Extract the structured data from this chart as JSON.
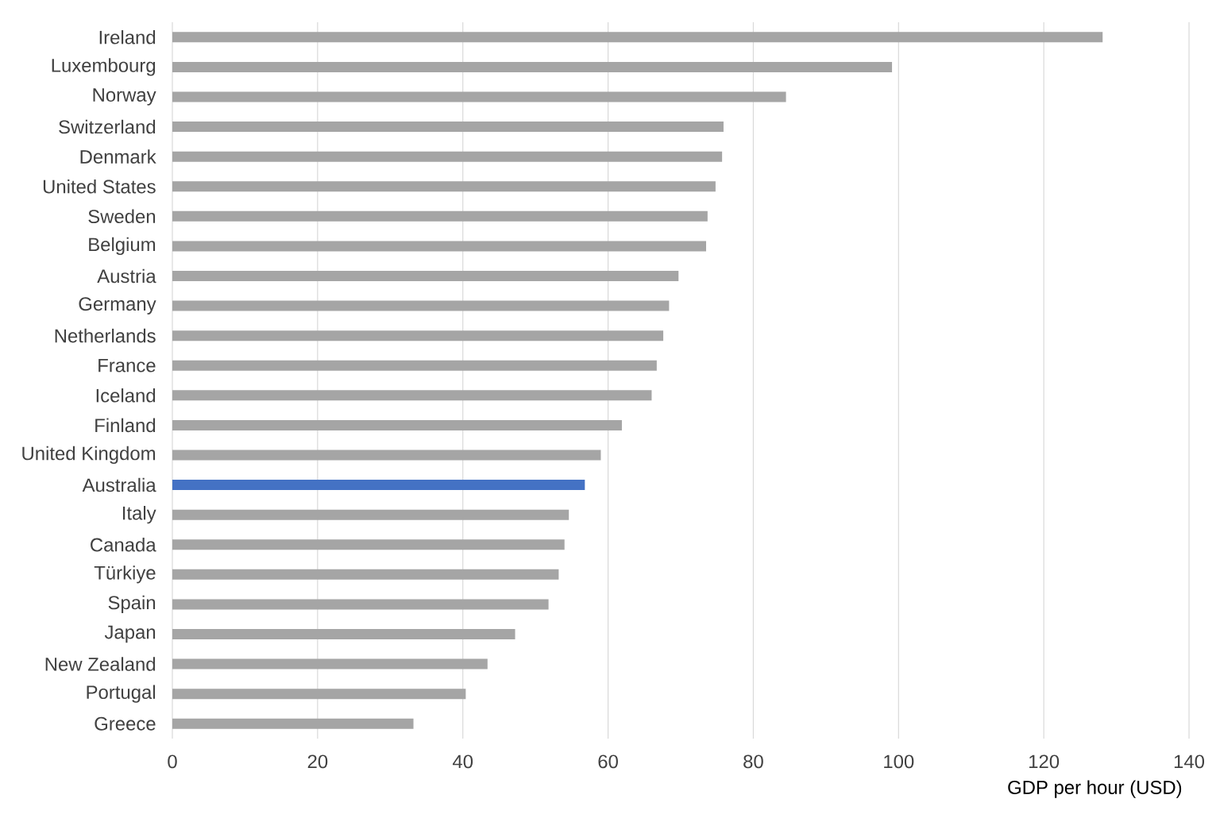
{
  "chart_data": {
    "type": "bar",
    "orientation": "horizontal",
    "xlabel": "GDP per hour (USD)",
    "categories": [
      "Ireland",
      "Luxembourg",
      "Norway",
      "Switzerland",
      "Denmark",
      "United States",
      "Sweden",
      "Belgium",
      "Austria",
      "Germany",
      "Netherlands",
      "France",
      "Iceland",
      "Finland",
      "United Kingdom",
      "Australia",
      "Italy",
      "Canada",
      "Türkiye",
      "Spain",
      "Japan",
      "New Zealand",
      "Portugal",
      "Greece"
    ],
    "values": [
      128.1,
      99.1,
      84.5,
      75.9,
      75.7,
      74.8,
      73.7,
      73.5,
      69.7,
      68.4,
      67.6,
      66.7,
      66.0,
      61.9,
      59.0,
      56.8,
      54.6,
      54.0,
      53.2,
      51.8,
      47.2,
      43.4,
      40.4,
      33.2
    ],
    "colors": [
      "#a5a5a5",
      "#a5a5a5",
      "#a5a5a5",
      "#a5a5a5",
      "#a5a5a5",
      "#a5a5a5",
      "#a5a5a5",
      "#a5a5a5",
      "#a5a5a5",
      "#a5a5a5",
      "#a5a5a5",
      "#a5a5a5",
      "#a5a5a5",
      "#a5a5a5",
      "#a5a5a5",
      "#4472c4",
      "#a5a5a5",
      "#a5a5a5",
      "#a5a5a5",
      "#a5a5a5",
      "#a5a5a5",
      "#a5a5a5",
      "#a5a5a5",
      "#a5a5a5"
    ],
    "xlim": [
      0,
      140
    ],
    "xticks": [
      0,
      20,
      40,
      60,
      80,
      100,
      120,
      140
    ],
    "grid": "x"
  }
}
